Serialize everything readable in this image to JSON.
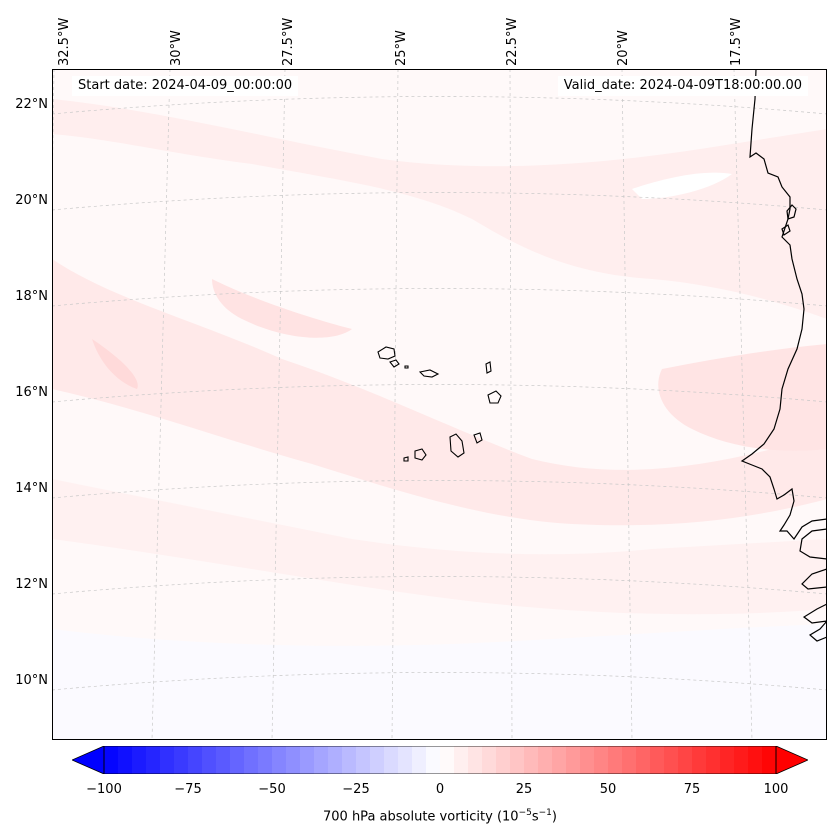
{
  "map": {
    "longitude_labels": [
      "32.5°W",
      "30°W",
      "27.5°W",
      "25°W",
      "22.5°W",
      "20°W",
      "17.5°W"
    ],
    "latitude_labels": [
      "22°N",
      "20°N",
      "18°N",
      "16°N",
      "14°N",
      "12°N",
      "10°N"
    ],
    "start_date": "Start date: 2024-04-09_00:00:00",
    "valid_date": "Valid_date: 2024-04-09T18:00:00.00"
  },
  "colorbar": {
    "ticks": [
      "−100",
      "−75",
      "−50",
      "−25",
      "0",
      "25",
      "50",
      "75",
      "100"
    ],
    "label_main": "700 hPa absolute vorticity (10",
    "label_exp1": "−5",
    "label_mid": "s",
    "label_exp2": "−1",
    "label_end": ")",
    "min": -100,
    "max": 100,
    "low_color": "#0000ff",
    "high_color": "#ff0000"
  },
  "colors": {
    "coastline": "#000000",
    "grid": "#c8c8c8",
    "field_background": "#fff9f9",
    "field_pink": "#ffe6e6"
  }
}
